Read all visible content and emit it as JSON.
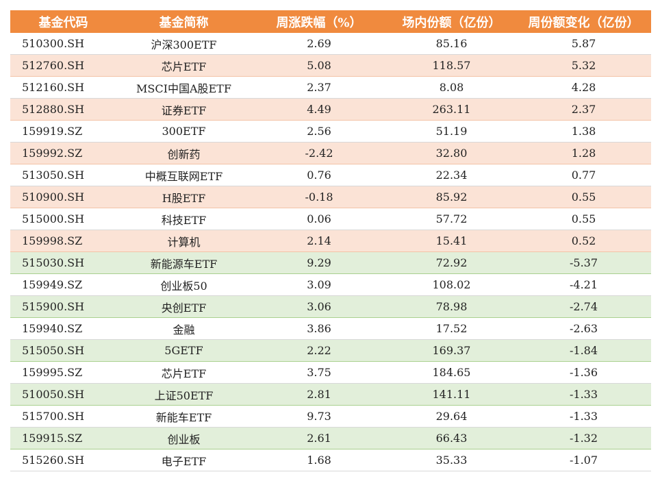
{
  "headers": [
    "基金代码",
    "基金简称",
    "周涨跌幅（%）",
    "场内份额（亿份）",
    "周份额变化（亿份）"
  ],
  "colors": {
    "header_bg": "#f08a3e",
    "inflow_row_bg": "#fbe3d6",
    "outflow_row_bg": "#e2efda"
  },
  "rows": [
    {
      "code": "510300.SH",
      "name": "沪深300ETF",
      "weekly_change": "2.69",
      "shares": "85.16",
      "share_change": "5.87",
      "shade": "white"
    },
    {
      "code": "512760.SH",
      "name": "芯片ETF",
      "weekly_change": "5.08",
      "shares": "118.57",
      "share_change": "5.32",
      "shade": "pink"
    },
    {
      "code": "512160.SH",
      "name": "MSCI中国A股ETF",
      "weekly_change": "2.37",
      "shares": "8.08",
      "share_change": "4.28",
      "shade": "white"
    },
    {
      "code": "512880.SH",
      "name": "证券ETF",
      "weekly_change": "4.49",
      "shares": "263.11",
      "share_change": "2.37",
      "shade": "pink"
    },
    {
      "code": "159919.SZ",
      "name": "300ETF",
      "weekly_change": "2.56",
      "shares": "51.19",
      "share_change": "1.38",
      "shade": "white"
    },
    {
      "code": "159992.SZ",
      "name": "创新药",
      "weekly_change": "-2.42",
      "shares": "32.80",
      "share_change": "1.28",
      "shade": "pink"
    },
    {
      "code": "513050.SH",
      "name": "中概互联网ETF",
      "weekly_change": "0.76",
      "shares": "22.34",
      "share_change": "0.77",
      "shade": "white"
    },
    {
      "code": "510900.SH",
      "name": "H股ETF",
      "weekly_change": "-0.18",
      "shares": "85.92",
      "share_change": "0.55",
      "shade": "pink"
    },
    {
      "code": "515000.SH",
      "name": "科技ETF",
      "weekly_change": "0.06",
      "shares": "57.72",
      "share_change": "0.55",
      "shade": "white"
    },
    {
      "code": "159998.SZ",
      "name": "计算机",
      "weekly_change": "2.14",
      "shares": "15.41",
      "share_change": "0.52",
      "shade": "pink"
    },
    {
      "code": "515030.SH",
      "name": "新能源车ETF",
      "weekly_change": "9.29",
      "shares": "72.92",
      "share_change": "-5.37",
      "shade": "green"
    },
    {
      "code": "159949.SZ",
      "name": "创业板50",
      "weekly_change": "3.09",
      "shares": "108.02",
      "share_change": "-4.21",
      "shade": "white"
    },
    {
      "code": "515900.SH",
      "name": "央创ETF",
      "weekly_change": "3.06",
      "shares": "78.98",
      "share_change": "-2.74",
      "shade": "green"
    },
    {
      "code": "159940.SZ",
      "name": "金融",
      "weekly_change": "3.86",
      "shares": "17.52",
      "share_change": "-2.63",
      "shade": "white"
    },
    {
      "code": "515050.SH",
      "name": "5GETF",
      "weekly_change": "2.22",
      "shares": "169.37",
      "share_change": "-1.84",
      "shade": "green"
    },
    {
      "code": "159995.SZ",
      "name": "芯片ETF",
      "weekly_change": "3.75",
      "shares": "184.65",
      "share_change": "-1.36",
      "shade": "white"
    },
    {
      "code": "510050.SH",
      "name": "上证50ETF",
      "weekly_change": "2.81",
      "shares": "141.11",
      "share_change": "-1.33",
      "shade": "green"
    },
    {
      "code": "515700.SH",
      "name": "新能车ETF",
      "weekly_change": "9.73",
      "shares": "29.64",
      "share_change": "-1.33",
      "shade": "white"
    },
    {
      "code": "159915.SZ",
      "name": "创业板",
      "weekly_change": "2.61",
      "shares": "66.43",
      "share_change": "-1.32",
      "shade": "green"
    },
    {
      "code": "515260.SH",
      "name": "电子ETF",
      "weekly_change": "1.68",
      "shares": "35.33",
      "share_change": "-1.07",
      "shade": "white"
    }
  ]
}
